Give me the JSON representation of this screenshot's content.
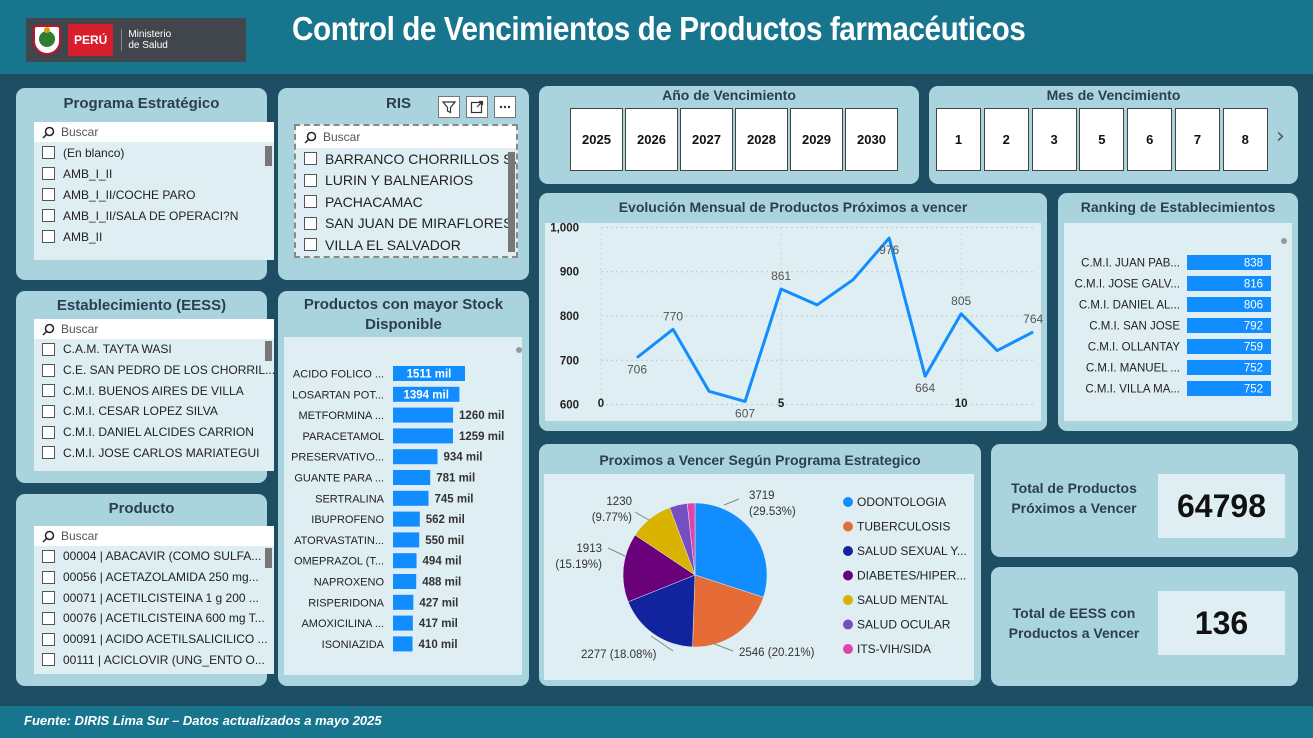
{
  "header": {
    "logo_country": "PERÚ",
    "logo_ministry_line1": "Ministerio",
    "logo_ministry_line2": "de Salud",
    "title": "Control de Vencimientos de Productos farmacéuticos"
  },
  "programa": {
    "title": "Programa Estratégico",
    "search_placeholder": "Buscar",
    "items": [
      "(En blanco)",
      "AMB_I_II",
      "AMB_I_II/COCHE PARO",
      "AMB_I_II/SALA DE OPERACI?N",
      "AMB_II"
    ]
  },
  "ris": {
    "title": "RIS",
    "search_placeholder": "Buscar",
    "items": [
      "BARRANCO CHORRILLOS SU..",
      "LURIN Y BALNEARIOS",
      "PACHACAMAC",
      "SAN JUAN DE MIRAFLORES",
      "VILLA EL SALVADOR"
    ]
  },
  "anio": {
    "title": "Año de Vencimiento",
    "items": [
      "2025",
      "2026",
      "2027",
      "2028",
      "2029",
      "2030"
    ]
  },
  "mes": {
    "title": "Mes de Vencimiento",
    "items": [
      "1",
      "2",
      "3",
      "5",
      "6",
      "7",
      "8"
    ],
    "next": "›"
  },
  "eess": {
    "title": "Establecimiento (EESS)",
    "search_placeholder": "Buscar",
    "items": [
      "C.A.M. TAYTA WASI",
      "C.E. SAN PEDRO DE LOS CHORRIL...",
      "C.M.I. BUENOS AIRES DE VILLA",
      "C.M.I. CESAR LOPEZ SILVA",
      "C.M.I. DANIEL ALCIDES CARRION",
      "C.M.I. JOSE CARLOS MARIATEGUI"
    ]
  },
  "producto": {
    "title": "Producto",
    "search_placeholder": "Buscar",
    "items": [
      "00004 | ABACAVIR (COMO SULFA...",
      "00056 | ACETAZOLAMIDA 250 mg...",
      "00071 | ACETILCISTEINA 1 g 200 ...",
      "00076 | ACETILCISTEINA 600 mg T...",
      "00091 | ACIDO ACETILSALICILICO ...",
      "00111 | ACICLOVIR (UNG_ENTO O..."
    ]
  },
  "colors": {
    "bar": "#118dff",
    "line": "#118dff",
    "card": "#a9d4de",
    "background": "#1d4e64",
    "header": "#17758e"
  },
  "chart_data": [
    {
      "id": "stock",
      "type": "bar",
      "title": "Productos con mayor Stock Disponible",
      "orientation": "horizontal",
      "categories": [
        "ACIDO FOLICO ...",
        "LOSARTAN POT...",
        "METFORMINA ...",
        "PARACETAMOL",
        "PRESERVATIVO...",
        "GUANTE PARA ...",
        "SERTRALINA",
        "IBUPROFENO",
        "ATORVASTATIN...",
        "OMEPRAZOL (T...",
        "NAPROXENO",
        "RISPERIDONA",
        "AMOXICILINA ...",
        "ISONIAZIDA"
      ],
      "values": [
        1511,
        1394,
        1260,
        1259,
        934,
        781,
        745,
        562,
        550,
        494,
        488,
        427,
        417,
        410
      ],
      "value_labels": [
        "1511 mil",
        "1394 mil",
        "1260 mil",
        "1259 mil",
        "934 mil",
        "781 mil",
        "745 mil",
        "562 mil",
        "550 mil",
        "494 mil",
        "488 mil",
        "427 mil",
        "417 mil",
        "410 mil"
      ]
    },
    {
      "id": "monthly",
      "type": "line",
      "title": "Evolución Mensual de Productos Próximos a vencer",
      "x": [
        1,
        2,
        3,
        4,
        5,
        6,
        7,
        8,
        9,
        10,
        11,
        12
      ],
      "values": [
        706,
        770,
        630,
        607,
        861,
        825,
        882,
        976,
        664,
        805,
        722,
        764
      ],
      "point_labels": [
        "706",
        "770",
        "",
        "607",
        "861",
        "",
        "",
        "976",
        "664",
        "805",
        "",
        "764"
      ],
      "yticks": [
        "1,000",
        "900",
        "800",
        "700",
        "600"
      ],
      "xticks": [
        "0",
        "5",
        "10"
      ],
      "ylim": [
        590,
        1010
      ],
      "xlim": [
        0,
        12.3
      ],
      "grid": true
    },
    {
      "id": "ranking",
      "type": "bar",
      "title": "Ranking de Establecimientos",
      "orientation": "horizontal",
      "categories": [
        "C.M.I. JUAN PAB...",
        "C.M.I. JOSE GALV...",
        "C.M.I. DANIEL AL...",
        "C.M.I. SAN JOSE",
        "C.M.I. OLLANTAY",
        "C.M.I. MANUEL ...",
        "C.M.I. VILLA MA..."
      ],
      "values": [
        838,
        816,
        806,
        792,
        759,
        752,
        752
      ]
    },
    {
      "id": "programa",
      "type": "pie",
      "title": "Proximos a Vencer Según Programa Estrategico",
      "categories": [
        "ODONTOLOGIA",
        "TUBERCULOSIS",
        "SALUD SEXUAL Y...",
        "DIABETES/HIPER...",
        "SALUD MENTAL",
        "SALUD OCULAR",
        "ITS-VIH/SIDA"
      ],
      "values": [
        3719,
        2546,
        2277,
        1913,
        1230,
        494,
        213
      ],
      "colors": [
        "#118dff",
        "#e66c37",
        "#12239e",
        "#6b007b",
        "#d9b300",
        "#744ec2",
        "#e044a7"
      ],
      "data_labels": [
        [
          "3719",
          "(29.53%)"
        ],
        [
          "2546 (20.21%)"
        ],
        [
          "2277 (18.08%)"
        ],
        [
          "1913",
          "(15.19%)"
        ],
        [
          "1230",
          "(9.77%)"
        ],
        [],
        []
      ]
    }
  ],
  "kpi": {
    "total_label_1": "Total de Productos",
    "total_label_2": "Próximos a Vencer",
    "total_value": "64798",
    "eess_label_1": "Total de EESS con",
    "eess_label_2": "Productos a Vencer",
    "eess_value": "136"
  },
  "footer": {
    "text": "Fuente: DIRIS Lima Sur – Datos actualizados a mayo 2025"
  }
}
